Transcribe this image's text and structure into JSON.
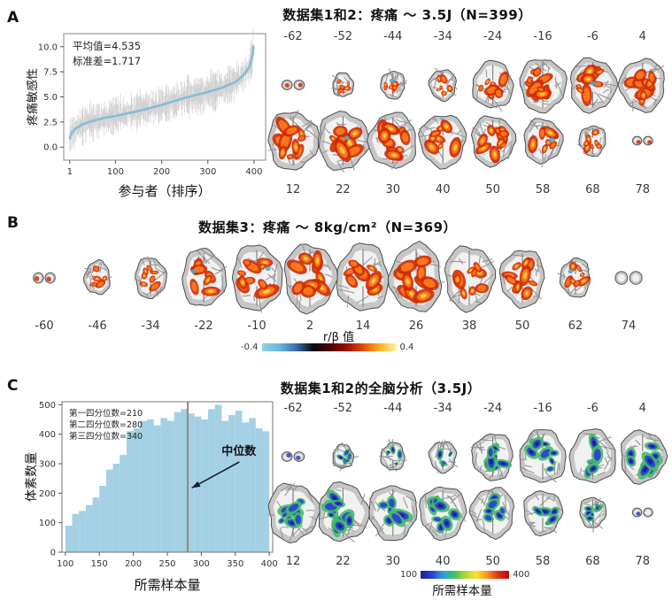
{
  "panelA": {
    "label": "A",
    "title": "数据集1和2：疼痛 ～ 3.5J（N=399）",
    "slice_labels_top": [
      "-62",
      "-52",
      "-44",
      "-34",
      "-24",
      "-16",
      "-6",
      "4"
    ],
    "slice_labels_bottom": [
      "12",
      "22",
      "30",
      "40",
      "50",
      "58",
      "68",
      "78"
    ]
  },
  "panelB": {
    "label": "B",
    "title": "数据集3：疼痛 ～ 8kg/cm²（N=369）",
    "slice_labels": [
      "-60",
      "-46",
      "-34",
      "-22",
      "-10",
      "2",
      "14",
      "26",
      "38",
      "50",
      "62",
      "74"
    ],
    "colorbar": {
      "label": "r/β 值",
      "min_label": "-0.4",
      "max_label": "0.4"
    }
  },
  "panelC": {
    "label": "C",
    "title": "数据集1和2的全脑分析（3.5J）",
    "slice_labels_top": [
      "-62",
      "-52",
      "-44",
      "-34",
      "-24",
      "-16",
      "-6",
      "4"
    ],
    "slice_labels_bottom": [
      "12",
      "22",
      "30",
      "40",
      "50",
      "58",
      "68",
      "78"
    ],
    "colorbar": {
      "label": "所需样本量",
      "min_label": "100",
      "max_label": "400"
    }
  },
  "colors": {
    "slice_gray": "#c6c6c6",
    "slice_inner": "#f1f1f1",
    "hot_colorbar": [
      "#8ed3ea",
      "#6cb5dc",
      "#3a6fae",
      "#0a0a12",
      "#4a0300",
      "#a01000",
      "#e04a00",
      "#ffb428",
      "#fdf2a8"
    ],
    "jet_colorbar": [
      "#1f1e8e",
      "#2a3fd6",
      "#2e9ade",
      "#41c06a",
      "#a8d83a",
      "#ffe22b",
      "#f7941f",
      "#e03014",
      "#b50d0d"
    ],
    "hot_blob": [
      "#cf2a00",
      "#ff7d1e",
      "#ffd43a"
    ],
    "cool_blob": [
      "#46b96a",
      "#2a3ed2",
      "#131f96"
    ]
  },
  "chart_data": [
    {
      "type": "line",
      "panel": "A",
      "title": "",
      "xlabel": "参与者（排序）",
      "ylabel": "疼痛敏感性",
      "annotations": [
        "平均值=4.535",
        "标准差=1.717"
      ],
      "xticks": [
        1,
        100,
        200,
        300,
        400
      ],
      "yticks": [
        0.0,
        2.5,
        5.0,
        7.5,
        10.0
      ],
      "xlim": [
        1,
        405
      ],
      "ylim": [
        -1.0,
        11.0
      ],
      "x": [
        1,
        5,
        15,
        30,
        50,
        75,
        100,
        150,
        200,
        250,
        300,
        330,
        360,
        380,
        390,
        396,
        399
      ],
      "y": [
        0.9,
        1.4,
        1.9,
        2.3,
        2.6,
        2.9,
        3.1,
        3.6,
        4.2,
        4.9,
        5.5,
        5.9,
        6.5,
        7.3,
        8.0,
        9.0,
        10.0
      ],
      "line_color": "#85bdd9",
      "noise_color": "#cccccc",
      "legend": "none",
      "grid": "off"
    },
    {
      "type": "bar",
      "panel": "C",
      "title": "",
      "xlabel": "所需样本量",
      "ylabel": "体素数量",
      "bin_start": 100,
      "bin_width": 10,
      "values": [
        90,
        130,
        140,
        160,
        185,
        225,
        280,
        300,
        330,
        410,
        420,
        445,
        450,
        430,
        455,
        445,
        475,
        485,
        470,
        460,
        450,
        485,
        500,
        445,
        465,
        480,
        440,
        455,
        420,
        410
      ],
      "xticks": [
        100,
        150,
        200,
        250,
        300,
        350,
        400
      ],
      "yticks": [
        0,
        100,
        200,
        300,
        400,
        500
      ],
      "xlim": [
        95,
        405
      ],
      "ylim": [
        0,
        510
      ],
      "median_x": 280,
      "median_label": "中位数",
      "annotations": [
        "第一四分位数=210",
        "第二四分位数=280",
        "第三四分位数=340"
      ],
      "bar_color": "#a3d0e4",
      "median_line_color": "#a5846a",
      "legend": "none",
      "grid": "off"
    }
  ]
}
